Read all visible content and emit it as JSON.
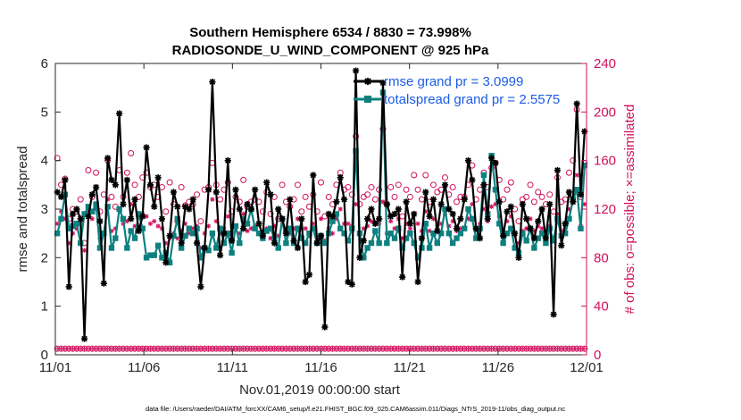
{
  "chart_data": {
    "type": "line",
    "title_line1": "Southern Hemisphere 6534 / 8830 = 73.998%",
    "title_line2": "RADIOSONDE_U_WIND_COMPONENT @ 925 hPa",
    "xlabel": "Nov.01,2019 00:00:00 start",
    "ylabel_left": "rmse and totalspread",
    "ylabel_right": "# of obs: o=possible; ×=assimilated",
    "footer": "data file: /Users/raeder/DAI/ATM_forcXX/CAM6_setup/f.e21.FHIST_BGC.f09_025.CAM6assim.011/Diags_NTrS_2019-11/obs_diag_output.nc",
    "xlim": [
      0,
      30
    ],
    "ylim_left": [
      0,
      6
    ],
    "ylim_right": [
      0,
      240
    ],
    "x_ticks": [
      0,
      5,
      10,
      15,
      20,
      25,
      30
    ],
    "x_tick_labels": [
      "11/01",
      "11/06",
      "11/11",
      "11/16",
      "11/21",
      "11/26",
      "12/01"
    ],
    "y_left_ticks": [
      0,
      1,
      2,
      3,
      4,
      5,
      6
    ],
    "y_left_tick_labels": [
      "0",
      "1",
      "2",
      "3",
      "4",
      "5",
      "6"
    ],
    "y_right_ticks": [
      0,
      40,
      80,
      120,
      160,
      200,
      240
    ],
    "y_right_tick_labels": [
      "0",
      "40",
      "80",
      "120",
      "160",
      "200",
      "240"
    ],
    "colors": {
      "rmse": "#000000",
      "spread": "#0e8080",
      "obs": "#d0105c",
      "legend_text": "#1a5ce6"
    },
    "series": [
      {
        "name": "rmse grand pr = 3.0999",
        "values": [
          3.35,
          3.25,
          3.6,
          1.4,
          2.9,
          3.0,
          2.8,
          0.33,
          2.85,
          3.3,
          3.45,
          2.75,
          1.47,
          4.05,
          3.6,
          3.5,
          4.97,
          3.1,
          3.6,
          2.8,
          3.2,
          2.55,
          2.85,
          4.27,
          3.5,
          3.05,
          3.65,
          2.8,
          1.9,
          2.45,
          3.35,
          3.05,
          2.3,
          3.05,
          3.0,
          3.2,
          2.3,
          1.4,
          2.2,
          3.4,
          5.62,
          3.35,
          2.05,
          2.5,
          4.0,
          2.35,
          3.4,
          3.0,
          2.6,
          3.1,
          3.0,
          3.4,
          2.7,
          2.45,
          3.55,
          3.3,
          2.3,
          3.0,
          2.8,
          2.5,
          3.2,
          2.35,
          2.2,
          2.8,
          1.5,
          1.65,
          3.7,
          2.3,
          2.45,
          0.57,
          2.9,
          2.85,
          3.15,
          3.65,
          3.2,
          1.5,
          1.45,
          5.85,
          2.0,
          2.35,
          2.8,
          3.0,
          2.7,
          2.8,
          5.6,
          3.1,
          2.85,
          2.9,
          3.0,
          1.6,
          3.15,
          2.7,
          2.9,
          1.5,
          2.4,
          3.35,
          2.85,
          3.2,
          2.55,
          3.1,
          3.5,
          3.0,
          2.9,
          2.6,
          2.8,
          3.2,
          4.0,
          3.6,
          2.6,
          2.4,
          3.5,
          2.8,
          4.05,
          3.95,
          3.15,
          2.45,
          2.95,
          3.05,
          2.5,
          2.0,
          3.1,
          2.8,
          2.6,
          2.4,
          2.75,
          3.0,
          2.4,
          3.1,
          0.83,
          3.8,
          2.25,
          2.7,
          3.35,
          3.15,
          5.17,
          3.3,
          4.6
        ]
      },
      {
        "name": "totalspread grand pr = 2.5575",
        "values": [
          2.5,
          2.8,
          3.3,
          2.6,
          2.65,
          2.7,
          2.3,
          2.9,
          3.05,
          2.95,
          3.1,
          2.2,
          2.5,
          3.05,
          2.2,
          2.4,
          3.0,
          2.8,
          2.2,
          2.55,
          2.4,
          2.9,
          2.6,
          2.0,
          2.05,
          2.05,
          2.25,
          2.0,
          2.1,
          1.9,
          2.45,
          2.8,
          2.2,
          2.45,
          2.6,
          2.5,
          2.6,
          2.0,
          2.2,
          2.15,
          2.5,
          2.2,
          2.6,
          2.3,
          2.5,
          2.1,
          2.65,
          2.3,
          2.8,
          2.7,
          3.0,
          2.6,
          2.5,
          2.4,
          2.55,
          2.6,
          2.4,
          2.2,
          2.8,
          2.3,
          2.6,
          2.3,
          2.6,
          2.4,
          2.3,
          2.5,
          2.6,
          2.3,
          2.45,
          2.3,
          2.5,
          2.75,
          2.9,
          2.6,
          2.5,
          2.35,
          2.6,
          4.2,
          2.5,
          2.0,
          2.2,
          2.3,
          2.55,
          2.3,
          5.4,
          2.3,
          2.5,
          2.4,
          2.6,
          2.2,
          2.4,
          2.5,
          2.3,
          2.0,
          2.2,
          2.7,
          2.2,
          2.5,
          2.3,
          2.5,
          3.0,
          2.5,
          2.3,
          2.4,
          2.5,
          2.6,
          3.0,
          2.8,
          2.4,
          2.6,
          3.7,
          2.9,
          4.1,
          3.4,
          2.7,
          2.3,
          2.5,
          2.6,
          2.2,
          2.1,
          2.5,
          2.35,
          2.6,
          2.2,
          2.4,
          2.5,
          2.3,
          2.6,
          2.35,
          2.8,
          2.45,
          2.5,
          2.8,
          3.2,
          3.4,
          2.6,
          3.9
        ]
      },
      {
        "name": "obs possible",
        "values": [
          162,
          140,
          145,
          112,
          120,
          118,
          128,
          92,
          152,
          130,
          150,
          118,
          132,
          160,
          130,
          122,
          152,
          130,
          150,
          166,
          140,
          130,
          146,
          150,
          138,
          140,
          130,
          138,
          118,
          142,
          124,
          110,
          138,
          123,
          126,
          124,
          132,
          110,
          136,
          138,
          158,
          140,
          128,
          136,
          142,
          118,
          130,
          126,
          144,
          122,
          126,
          128,
          126,
          118,
          134,
          116,
          130,
          112,
          140,
          126,
          122,
          128,
          140,
          118,
          130,
          122,
          132,
          118,
          142,
          114,
          130,
          124,
          140,
          150,
          136,
          138,
          132,
          180,
          124,
          130,
          132,
          138,
          128,
          136,
          186,
          124,
          138,
          130,
          140,
          114,
          136,
          130,
          148,
          136,
          128,
          148,
          126,
          140,
          134,
          136,
          146,
          132,
          138,
          126,
          130,
          130,
          140,
          156,
          128,
          136,
          150,
          138,
          154,
          158,
          144,
          128,
          136,
          142,
          120,
          110,
          128,
          130,
          140,
          126,
          134,
          130,
          124,
          132,
          118,
          146,
          126,
          128,
          150,
          160,
          202,
          130,
          158
        ]
      },
      {
        "name": "obs assimilated",
        "values": [
          108,
          118,
          112,
          92,
          100,
          104,
          110,
          86,
          118,
          112,
          120,
          96,
          100,
          128,
          102,
          104,
          120,
          108,
          110,
          124,
          106,
          102,
          116,
          114,
          108,
          110,
          106,
          104,
          92,
          96,
          100,
          96,
          102,
          108,
          100,
          104,
          106,
          88,
          100,
          106,
          128,
          110,
          100,
          104,
          114,
          96,
          106,
          100,
          116,
          102,
          104,
          106,
          100,
          96,
          104,
          96,
          106,
          98,
          110,
          102,
          100,
          104,
          112,
          96,
          104,
          98,
          108,
          96,
          112,
          94,
          104,
          100,
          112,
          120,
          108,
          108,
          106,
          124,
          100,
          104,
          106,
          110,
          102,
          108,
          126,
          100,
          110,
          104,
          112,
          96,
          108,
          104,
          116,
          108,
          102,
          118,
          102,
          112,
          106,
          108,
          116,
          106,
          110,
          102,
          104,
          104,
          112,
          124,
          104,
          108,
          120,
          110,
          122,
          124,
          114,
          102,
          110,
          114,
          98,
          92,
          102,
          104,
          112,
          102,
          106,
          104,
          100,
          106,
          96,
          116,
          102,
          104,
          120,
          126,
          148,
          106,
          124
        ]
      }
    ],
    "obs_floor_possible": 5,
    "obs_floor_assimilated": 5
  }
}
